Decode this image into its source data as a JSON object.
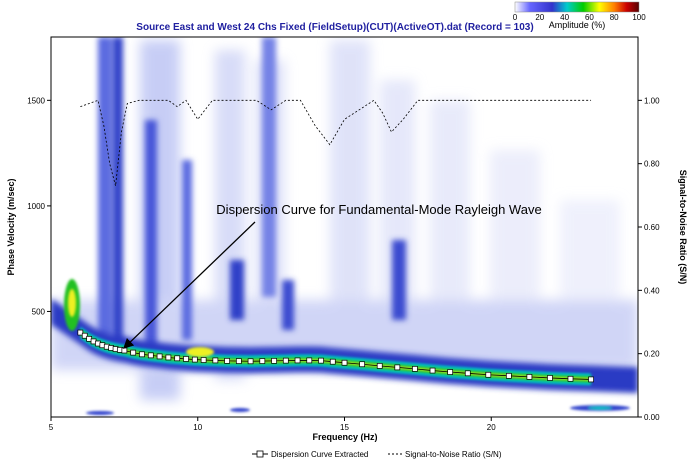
{
  "chart_data": {
    "type": "heatmap",
    "title": "Source East and West 24 Chs Fixed (FieldSetup)(CUT)(ActiveOT).dat (Record = 103)",
    "xlabel": "Frequency (Hz)",
    "ylabel": "Phase Velocity (m/sec)",
    "y2label": "Signal-to-Noise Ratio (S/N)",
    "xlim": [
      5,
      25
    ],
    "ylim": [
      0,
      1800
    ],
    "y2lim": [
      0,
      1.2
    ],
    "x_ticks": [
      "5",
      "10",
      "15",
      "20"
    ],
    "x_tick_values": [
      5,
      10,
      15,
      20
    ],
    "y_ticks": [
      "500",
      "1000",
      "1500"
    ],
    "y_tick_values": [
      500,
      1000,
      1500
    ],
    "y2_ticks": [
      "0.00",
      "0.20",
      "0.40",
      "0.60",
      "0.80",
      "1.00"
    ],
    "y2_tick_values": [
      0,
      0.2,
      0.4,
      0.6,
      0.8,
      1.0
    ],
    "colorbar": {
      "label": "Amplitude (%)",
      "ticks": [
        "0",
        "20",
        "40",
        "60",
        "80",
        "100"
      ],
      "colors": [
        "#ffffff",
        "#3333cc",
        "#00cccc",
        "#00cc00",
        "#ffff00",
        "#ff8000",
        "#cc0000",
        "#550000"
      ]
    },
    "annotation": "Dispersion Curve for Fundamental-Mode Rayleigh Wave",
    "legend": {
      "position": "bottom",
      "entries": [
        "Dispersion Curve Extracted",
        "Signal-to-Noise Ratio (S/N)"
      ]
    },
    "series": [
      {
        "name": "Dispersion Curve Extracted",
        "x": [
          6.0,
          6.15,
          6.3,
          6.45,
          6.6,
          6.75,
          6.9,
          7.05,
          7.2,
          7.35,
          7.5,
          7.8,
          8.1,
          8.4,
          8.7,
          9.0,
          9.3,
          9.6,
          9.9,
          10.2,
          10.6,
          11.0,
          11.4,
          11.8,
          12.2,
          12.6,
          13.0,
          13.4,
          13.8,
          14.2,
          14.6,
          15.0,
          15.6,
          16.2,
          16.8,
          17.4,
          18.0,
          18.6,
          19.2,
          19.9,
          20.6,
          21.3,
          22.0,
          22.7,
          23.4
        ],
        "y": [
          400,
          385,
          370,
          358,
          348,
          340,
          333,
          327,
          322,
          318,
          315,
          305,
          297,
          292,
          287,
          282,
          278,
          275,
          272,
          270,
          268,
          266,
          265,
          264,
          265,
          266,
          267,
          268,
          268,
          267,
          262,
          257,
          250,
          242,
          235,
          228,
          220,
          213,
          207,
          200,
          195,
          190,
          185,
          181,
          178
        ]
      },
      {
        "name": "Signal-to-Noise Ratio (S/N)",
        "x": [
          6.0,
          6.3,
          6.6,
          6.8,
          7.0,
          7.2,
          7.4,
          7.6,
          8.0,
          8.5,
          9.0,
          9.3,
          9.6,
          10.0,
          10.5,
          11.0,
          12.0,
          12.5,
          13.0,
          13.5,
          14.0,
          14.5,
          15.0,
          16.0,
          16.3,
          16.6,
          17.0,
          17.5,
          18.0,
          20.0,
          23.4
        ],
        "y": [
          0.98,
          0.99,
          1.0,
          0.92,
          0.8,
          0.73,
          0.9,
          0.99,
          1.0,
          1.0,
          1.0,
          0.98,
          1.0,
          0.94,
          1.0,
          1.0,
          1.0,
          0.97,
          1.0,
          1.0,
          0.92,
          0.86,
          0.94,
          1.0,
          0.96,
          0.9,
          0.94,
          1.0,
          1.0,
          1.0,
          1.0
        ]
      }
    ]
  }
}
